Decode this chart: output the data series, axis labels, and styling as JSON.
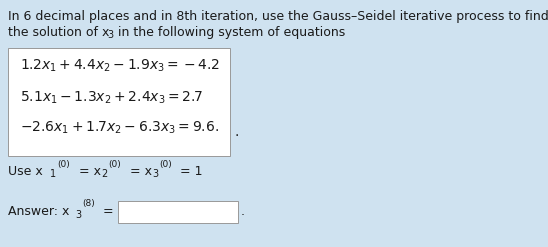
{
  "bg_color": "#cfe2f0",
  "box_bg": "#ffffff",
  "text_color": "#1a1a1a",
  "font_size_title": 9.0,
  "font_size_eq": 10.0,
  "font_size_use": 9.0,
  "font_size_answer": 9.0,
  "title_line1": "In 6 decimal places and in 8th iteration, use the Gauss–Seidel iterative process to find",
  "title_line2_a": "the solution of x",
  "title_line2_sub": "3",
  "title_line2_b": " in the following system of equations",
  "eq1": "$1.2x_1 + 4.4x_2 - 1.9x_3 = -4.2$",
  "eq2": "$5.1x_1 - 1.3x_2 + 2.4x_3 = 2.7$",
  "eq3": "$-2.6x_1 + 1.7x_2 - 6.3x_3 = 9.6.$"
}
